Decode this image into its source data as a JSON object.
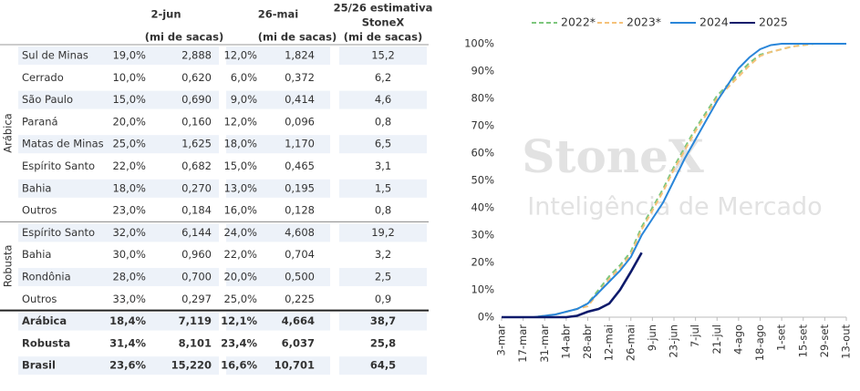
{
  "table": {
    "headers": [
      {
        "title": [
          "2-jun"
        ],
        "unit": "(mi de sacas)"
      },
      {
        "title": [
          "26-mai"
        ],
        "unit": "(mi de sacas)"
      },
      {
        "title": [
          "25/26 estimativa",
          "StoneX"
        ],
        "unit": "(mi de sacas)"
      }
    ],
    "groups": [
      {
        "label": "Arábica",
        "rows": [
          [
            "Sul de Minas",
            "19,0%",
            "2,888",
            "12,0%",
            "1,824",
            "15,2"
          ],
          [
            "Cerrado",
            "10,0%",
            "0,620",
            "6,0%",
            "0,372",
            "6,2"
          ],
          [
            "São Paulo",
            "15,0%",
            "0,690",
            "9,0%",
            "0,414",
            "4,6"
          ],
          [
            "Paraná",
            "20,0%",
            "0,160",
            "12,0%",
            "0,096",
            "0,8"
          ],
          [
            "Matas de Minas",
            "25,0%",
            "1,625",
            "18,0%",
            "1,170",
            "6,5"
          ],
          [
            "Espírito Santo",
            "22,0%",
            "0,682",
            "15,0%",
            "0,465",
            "3,1"
          ],
          [
            "Bahia",
            "18,0%",
            "0,270",
            "13,0%",
            "0,195",
            "1,5"
          ],
          [
            "Outros",
            "23,0%",
            "0,184",
            "16,0%",
            "0,128",
            "0,8"
          ]
        ]
      },
      {
        "label": "Robusta",
        "rows": [
          [
            "Espírito Santo",
            "32,0%",
            "6,144",
            "24,0%",
            "4,608",
            "19,2"
          ],
          [
            "Bahia",
            "30,0%",
            "0,960",
            "22,0%",
            "0,704",
            "3,2"
          ],
          [
            "Rondônia",
            "28,0%",
            "0,700",
            "20,0%",
            "0,500",
            "2,5"
          ],
          [
            "Outros",
            "33,0%",
            "0,297",
            "25,0%",
            "0,225",
            "0,9"
          ]
        ]
      }
    ],
    "totals": [
      [
        "Arábica",
        "18,4%",
        "7,119",
        "12,1%",
        "4,664",
        "38,7"
      ],
      [
        "Robusta",
        "31,4%",
        "8,101",
        "23,4%",
        "6,037",
        "25,8"
      ],
      [
        "Brasil",
        "23,6%",
        "15,220",
        "16,6%",
        "10,701",
        "64,5"
      ]
    ]
  },
  "chart_data": {
    "type": "line",
    "watermark": [
      "StoneX",
      "Inteligência de Mercado"
    ],
    "categories": [
      "3-mar",
      null,
      "17-mar",
      null,
      "31-mar",
      null,
      "14-abr",
      null,
      "28-abr",
      null,
      "12-mai",
      null,
      "26-mai",
      null,
      "9-jun",
      null,
      "23-jun",
      null,
      "7-jul",
      null,
      "21-jul",
      null,
      "4-ago",
      null,
      "18-ago",
      null,
      "1-set",
      null,
      "15-set",
      null,
      "29-set",
      null,
      "13-out"
    ],
    "ylim": [
      0,
      100
    ],
    "yticks": [
      {
        "value": 0,
        "label": "0%"
      },
      {
        "value": 10,
        "label": "10%"
      },
      {
        "value": 20,
        "label": "20%"
      },
      {
        "value": 30,
        "label": "30%"
      },
      {
        "value": 40,
        "label": "40%"
      },
      {
        "value": 50,
        "label": "50%"
      },
      {
        "value": 60,
        "label": "60%"
      },
      {
        "value": 70,
        "label": "70%"
      },
      {
        "value": 80,
        "label": "80%"
      },
      {
        "value": 90,
        "label": "90%"
      },
      {
        "value": 100,
        "label": "100%"
      }
    ],
    "legend": "top",
    "series": [
      {
        "name": "2022*",
        "color": "#7dc67d",
        "dashed": true,
        "values": [
          0,
          0,
          0,
          0,
          0.5,
          1,
          2,
          3,
          5,
          10,
          15,
          19,
          24,
          33,
          40,
          47,
          55,
          62,
          69,
          75,
          81,
          85,
          89,
          93,
          96,
          97,
          98,
          99,
          99.5,
          100,
          100,
          100,
          100
        ]
      },
      {
        "name": "2023*",
        "color": "#f5c27a",
        "dashed": true,
        "values": [
          0,
          0,
          0,
          0,
          0.5,
          1,
          2,
          3,
          4,
          9,
          14,
          18,
          23,
          32,
          39,
          46,
          54,
          61,
          68,
          74,
          80,
          84,
          88,
          92,
          95.5,
          97,
          98,
          99,
          99.5,
          100,
          100,
          100,
          100
        ]
      },
      {
        "name": "2024",
        "color": "#2a86d9",
        "dashed": false,
        "values": [
          0,
          0,
          0,
          0,
          0.5,
          1,
          2,
          3,
          5,
          9,
          13,
          17,
          22,
          30,
          36,
          42,
          50,
          58,
          65,
          72,
          79,
          85,
          91,
          95,
          98,
          99.5,
          100,
          100,
          100,
          100,
          100,
          100,
          100
        ]
      },
      {
        "name": "2025",
        "color": "#0d1a6b",
        "dashed": false,
        "values": [
          0,
          0,
          0,
          0,
          0,
          0,
          0,
          0.5,
          2,
          3,
          5,
          10,
          16.6,
          23.6,
          null,
          null,
          null,
          null,
          null,
          null,
          null,
          null,
          null,
          null,
          null,
          null,
          null,
          null,
          null,
          null,
          null,
          null,
          null
        ]
      }
    ]
  }
}
